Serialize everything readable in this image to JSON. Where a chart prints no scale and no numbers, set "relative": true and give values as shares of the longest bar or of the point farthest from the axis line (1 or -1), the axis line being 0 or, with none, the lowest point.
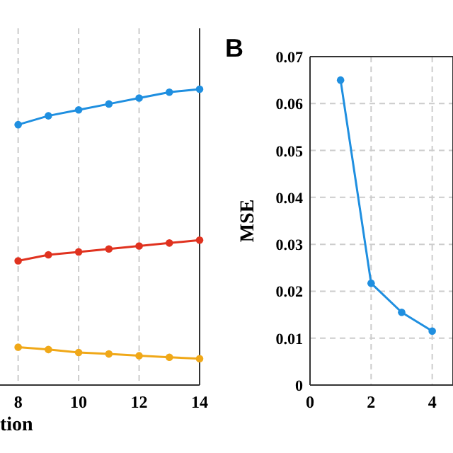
{
  "chart_data": [
    {
      "type": "line",
      "xlabel": "tion",
      "relative": true,
      "x": [
        8,
        9,
        10,
        11,
        12,
        13,
        14
      ],
      "xlim": [
        7.4,
        14
      ],
      "xticks": [
        8,
        10,
        12,
        14
      ],
      "grid": "x",
      "marker": "circle",
      "line_style": "solid",
      "tick_labels": "x",
      "series": [
        {
          "color": "#1f8fe0",
          "values": [
            0.88,
            0.91,
            0.93,
            0.95,
            0.97,
            0.99,
            1
          ]
        },
        {
          "color": "#e0321f",
          "values": [
            0.42,
            0.44,
            0.45,
            0.46,
            0.47,
            0.48,
            0.49
          ]
        },
        {
          "color": "#f0a818",
          "values": [
            0.128,
            0.12,
            0.11,
            0.105,
            0.099,
            0.094,
            0.089
          ]
        }
      ]
    },
    {
      "type": "line",
      "title": "B",
      "ylabel": "MSE",
      "x": [
        1,
        2,
        3,
        4
      ],
      "xlim": [
        0,
        4.68
      ],
      "xticks": [
        0,
        2,
        4
      ],
      "ylim": [
        0,
        0.07
      ],
      "yticks": [
        0,
        0.01,
        0.02,
        0.03,
        0.04,
        0.05,
        0.06,
        0.07
      ],
      "grid": true,
      "marker": "circle",
      "line_style": "solid",
      "series": [
        {
          "color": "#1f8fe0",
          "values": [
            0.065,
            0.0217,
            0.0155,
            0.0115
          ]
        }
      ]
    }
  ]
}
